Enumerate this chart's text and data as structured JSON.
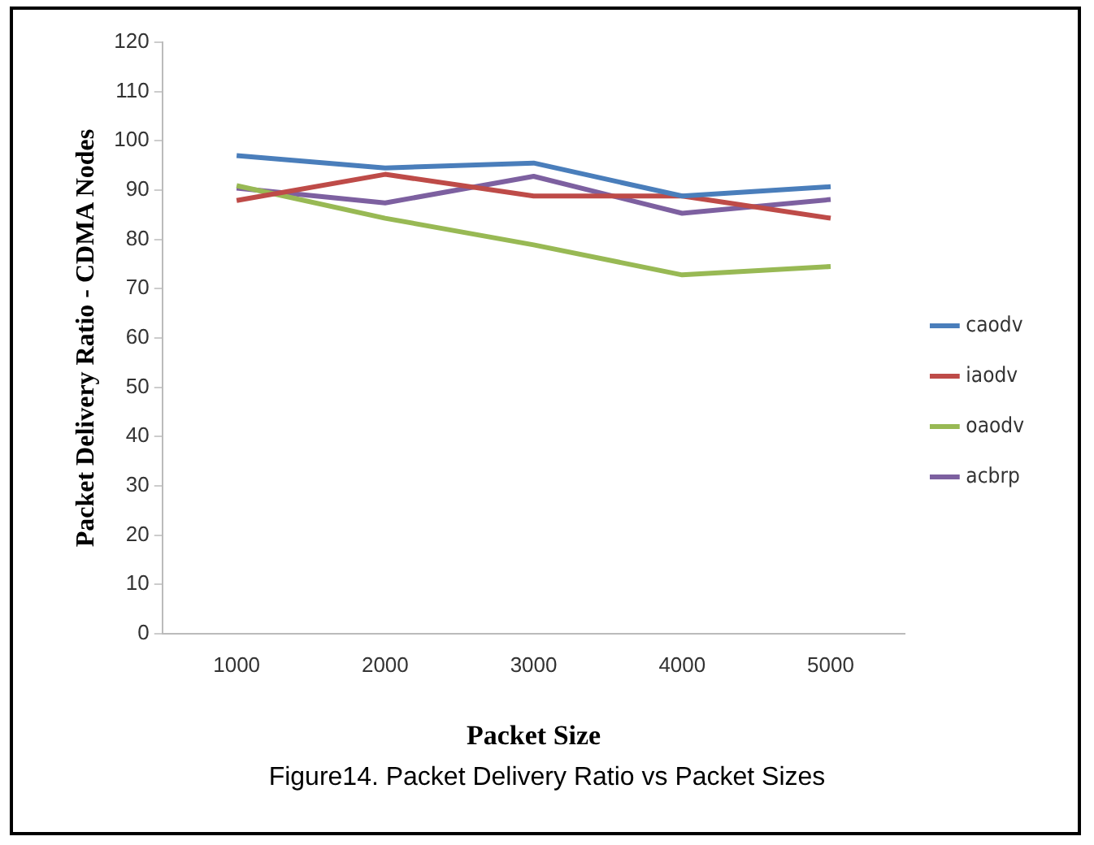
{
  "chart_data": {
    "type": "line",
    "xlabel": "Packet Size",
    "ylabel": "Packet Delivery Ratio - CDMA Nodes",
    "categories": [
      "1000",
      "2000",
      "3000",
      "4000",
      "5000"
    ],
    "series": [
      {
        "name": "caodv",
        "color": "#4a7ebb",
        "values": [
          97,
          94.5,
          95.5,
          88.8,
          90.7
        ]
      },
      {
        "name": "iaodv",
        "color": "#be4b48",
        "values": [
          87.9,
          93.2,
          88.8,
          88.8,
          84.3
        ]
      },
      {
        "name": "oaodv",
        "color": "#98b954",
        "values": [
          90.9,
          84.3,
          78.9,
          72.8,
          74.5
        ]
      },
      {
        "name": "acbrp",
        "color": "#7d60a0",
        "values": [
          90.4,
          87.4,
          92.8,
          85.3,
          88.1
        ]
      }
    ],
    "ylim": [
      0,
      120
    ],
    "yticks": [
      0,
      10,
      20,
      30,
      40,
      50,
      60,
      70,
      80,
      90,
      100,
      110,
      120
    ],
    "grid": false,
    "legend": "right",
    "marker": "none",
    "line_style": "solid",
    "annotations": [
      "Figure14. Packet Delivery Ratio vs Packet Sizes"
    ]
  }
}
